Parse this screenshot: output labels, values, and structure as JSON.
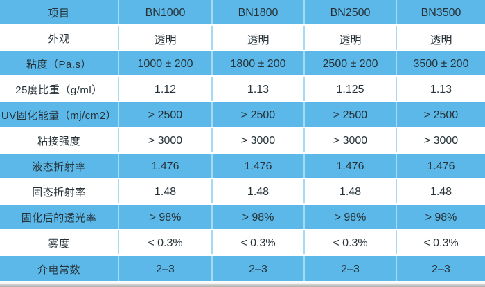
{
  "chart_data": {
    "type": "table",
    "title": "",
    "columns": [
      "项目",
      "BN1000",
      "BN1800",
      "BN2500",
      "BN3500"
    ],
    "rows": [
      [
        "外观",
        "透明",
        "透明",
        "透明",
        "透明"
      ],
      [
        "粘度（Pa.s）",
        "1000 ± 200",
        "1800 ± 200",
        "2500 ± 200",
        "3500 ± 200"
      ],
      [
        "25度比重（g/ml）",
        "1.12",
        "1.13",
        "1.125",
        "1.13"
      ],
      [
        "UV固化能量（mj/cm2）",
        "> 2500",
        "> 2500",
        "> 2500",
        "> 2500"
      ],
      [
        "粘接强度",
        "> 3000",
        "> 3000",
        "> 3000",
        "> 3000"
      ],
      [
        "液态折射率",
        "1.476",
        "1.476",
        "1.476",
        "1.476"
      ],
      [
        "固态折射率",
        "1.48",
        "1.48",
        "1.48",
        "1.48"
      ],
      [
        "固化后的透光率",
        "> 98%",
        "> 98%",
        "> 98%",
        "> 98%"
      ],
      [
        "雾度",
        "< 0.3%",
        "< 0.3%",
        "< 0.3%",
        "< 0.3%"
      ],
      [
        "介电常数",
        "2–3",
        "2–3",
        "2–3",
        "2–3"
      ]
    ],
    "layout": {
      "striped": true,
      "stripe_pattern": "header blue, then alternating white/blue",
      "grid": true
    }
  },
  "colors": {
    "row_blue": "#5cb8e8",
    "row_white": "#ffffff",
    "text": "#263238",
    "grid_vertical": "#a6d9f4",
    "grid_horizontal": "#ffffff",
    "bottom_edge_gray": "#b3b3b1"
  }
}
